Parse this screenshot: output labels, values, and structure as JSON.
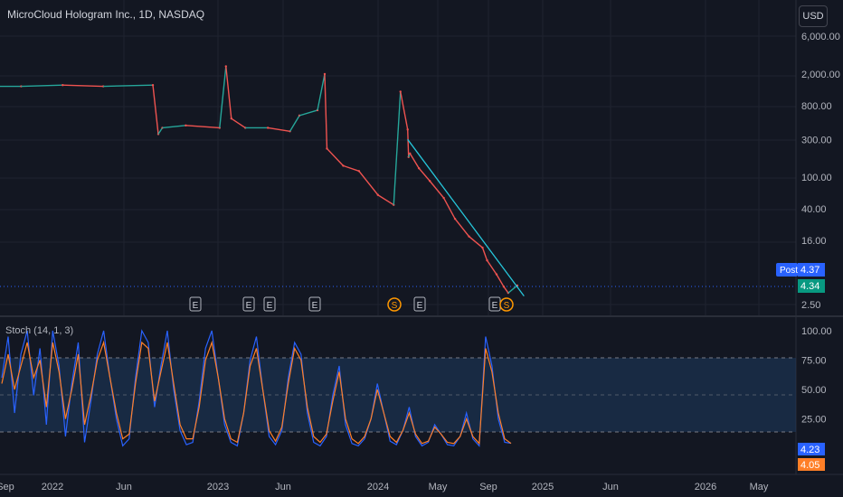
{
  "header": {
    "symbol_title": "MicroCloud Hologram Inc., 1D, NASDAQ",
    "currency_button": "USD"
  },
  "indicator": {
    "title": "Stoch (14, 1, 3)"
  },
  "price_axis": {
    "ticks": [
      "6,000.00",
      "2,000.00",
      "800.00",
      "300.00",
      "100.00",
      "40.00",
      "16.00",
      "2.50"
    ],
    "post_label": "Post",
    "post_price": "4.37",
    "last_price": "4.34"
  },
  "stoch_axis": {
    "ticks": [
      "100.00",
      "75.00",
      "50.00",
      "25.00"
    ],
    "k_value": "4.23",
    "d_value": "4.05"
  },
  "time_axis": {
    "labels": [
      "Sep",
      "2022",
      "Jun",
      "2023",
      "Jun",
      "2024",
      "May",
      "Sep",
      "2025",
      "Jun",
      "2026",
      "May"
    ]
  },
  "events": [
    {
      "type": "earnings",
      "label": "E"
    },
    {
      "type": "earnings",
      "label": "E"
    },
    {
      "type": "earnings",
      "label": "E"
    },
    {
      "type": "earnings",
      "label": "E"
    },
    {
      "type": "split",
      "label": "S"
    },
    {
      "type": "earnings",
      "label": "E"
    },
    {
      "type": "earnings",
      "label": "E"
    },
    {
      "type": "split",
      "label": "S"
    }
  ],
  "colors": {
    "background": "#131722",
    "up": "#26a69a",
    "down": "#ef5350",
    "trendline": "#26c6da",
    "stoch_k": "#2962ff",
    "stoch_d": "#ff7f27",
    "post_badge": "#2962ff",
    "last_badge": "#089981",
    "split_marker": "#ff9800",
    "band_fill": "#1e3a5f"
  },
  "chart_data": [
    {
      "type": "line",
      "title": "MicroCloud Hologram Inc., 1D, NASDAQ",
      "yscale": "log",
      "ylim": [
        2.0,
        8000
      ],
      "x": [
        "2021-08-01",
        "2021-10-01",
        "2022-01-01",
        "2022-04-01",
        "2022-07-20",
        "2022-08-01",
        "2022-08-10",
        "2022-10-01",
        "2022-12-15",
        "2022-12-29",
        "2023-01-10",
        "2023-02-10",
        "2023-04-01",
        "2023-05-20",
        "2023-06-10",
        "2023-07-20",
        "2023-08-05",
        "2023-08-10",
        "2023-09-15",
        "2023-10-20",
        "2023-12-01",
        "2024-01-05",
        "2024-01-20",
        "2024-02-05",
        "2024-02-07",
        "2024-02-10",
        "2024-03-01",
        "2024-03-25",
        "2024-04-25",
        "2024-05-20",
        "2024-06-20",
        "2024-07-20",
        "2024-07-30",
        "2024-08-20",
        "2024-09-05",
        "2024-09-15",
        "2024-10-05"
      ],
      "y": [
        1400,
        1400,
        1450,
        1400,
        1450,
        350,
        420,
        450,
        420,
        2500,
        550,
        420,
        420,
        380,
        600,
        700,
        2000,
        230,
        140,
        120,
        60,
        45,
        1200,
        400,
        180,
        200,
        130,
        90,
        55,
        30,
        18,
        13,
        9,
        6,
        4.2,
        3.5,
        4.34
      ],
      "trendline": {
        "from": [
          "2024-02-05",
          300
        ],
        "to": [
          "2024-10-20",
          3.2
        ]
      },
      "post_price": 4.37,
      "last_price": 4.34
    },
    {
      "type": "line",
      "title": "Stoch (14, 1, 3)",
      "ylim": [
        0,
        100
      ],
      "bands": [
        20,
        50,
        80
      ],
      "series": [
        {
          "name": "%K",
          "values": [
            60,
            95,
            30,
            80,
            100,
            45,
            85,
            20,
            100,
            70,
            10,
            55,
            90,
            5,
            40,
            80,
            100,
            60,
            25,
            2,
            8,
            60,
            100,
            90,
            35,
            70,
            100,
            50,
            15,
            3,
            5,
            40,
            85,
            100,
            60,
            20,
            5,
            2,
            30,
            75,
            95,
            50,
            10,
            3,
            15,
            60,
            90,
            80,
            30,
            5,
            2,
            10,
            45,
            70,
            20,
            4,
            2,
            8,
            25,
            55,
            30,
            6,
            3,
            15,
            35,
            10,
            2,
            5,
            20,
            12,
            3,
            2,
            10,
            30,
            8,
            2,
            95,
            70,
            25,
            5,
            4.23
          ]
        },
        {
          "name": "%D",
          "values": [
            55,
            80,
            50,
            70,
            90,
            60,
            75,
            35,
            90,
            65,
            25,
            50,
            80,
            20,
            45,
            75,
            90,
            60,
            30,
            8,
            12,
            55,
            90,
            85,
            40,
            65,
            90,
            55,
            20,
            8,
            8,
            35,
            75,
            90,
            60,
            25,
            8,
            5,
            30,
            70,
            85,
            50,
            15,
            6,
            18,
            55,
            85,
            75,
            35,
            10,
            5,
            12,
            40,
            65,
            25,
            8,
            4,
            10,
            25,
            50,
            30,
            10,
            5,
            15,
            30,
            12,
            4,
            6,
            18,
            12,
            5,
            4,
            10,
            25,
            10,
            4,
            85,
            65,
            30,
            8,
            4.05
          ]
        }
      ]
    }
  ]
}
